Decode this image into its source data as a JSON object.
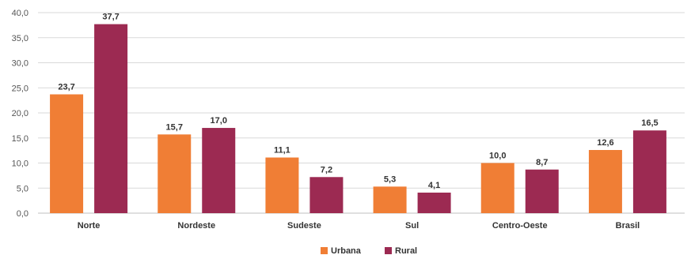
{
  "chart_data": {
    "type": "bar",
    "title": "",
    "xlabel": "",
    "ylabel": "",
    "categories": [
      "Norte",
      "Nordeste",
      "Sudeste",
      "Sul",
      "Centro-Oeste",
      "Brasil"
    ],
    "series": [
      {
        "name": "Urbana",
        "color": "#F07E35",
        "values": [
          23.7,
          15.7,
          11.1,
          5.3,
          10.0,
          12.6
        ],
        "labels": [
          "23,7",
          "15,7",
          "11,1",
          "5,3",
          "10,0",
          "12,6"
        ]
      },
      {
        "name": "Rural",
        "color": "#9C2A52",
        "values": [
          37.7,
          17.0,
          7.2,
          4.1,
          8.7,
          16.5
        ],
        "labels": [
          "37,7",
          "17,0",
          "7,2",
          "4,1",
          "8,7",
          "16,5"
        ]
      }
    ],
    "ylim": [
      0,
      40
    ],
    "yticks": [
      0,
      5,
      10,
      15,
      20,
      25,
      30,
      35,
      40
    ],
    "ytick_labels": [
      "0,0",
      "5,0",
      "10,0",
      "15,0",
      "20,0",
      "25,0",
      "30,0",
      "35,0",
      "40,0"
    ],
    "grid": true,
    "legend_position": "bottom-center"
  }
}
